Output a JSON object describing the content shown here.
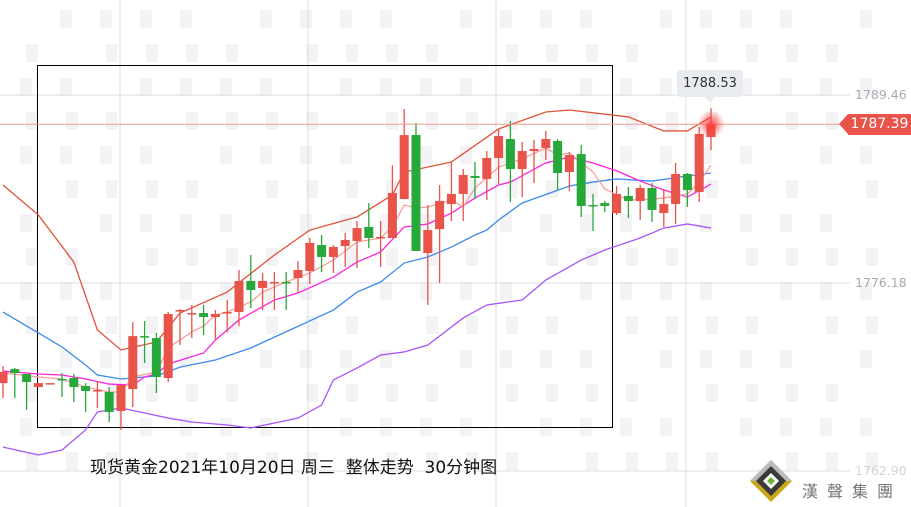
{
  "title": "现货黄金2021年10月20日 周三  整体走势  30分钟图",
  "logo_text": "漢聲集團",
  "colors": {
    "up": "#e8534a",
    "down": "#27a83a",
    "upper_band": "#e0533a",
    "lower_band": "#a855f7",
    "blue_line": "#3b8beb",
    "magenta_line": "#ff22dd",
    "pink_line": "#f4a09a",
    "last_price": "#e8534a"
  },
  "chart_data": {
    "type": "candlestick",
    "title": "现货黄金2021年10月20日 周三  整体走势  30分钟图",
    "ylim": [
      1762.9,
      1789.46
    ],
    "y_ticks": [
      "1789.46",
      "1776.18",
      "1762.90"
    ],
    "grid": true,
    "last_price": "1787.39",
    "tooltip_high": "1788.53",
    "candles": [
      [
        1769.11,
        1770.31,
        1768.06,
        1769.89
      ],
      [
        1770.1,
        1770.17,
        1768.06,
        1769.82
      ],
      [
        1769.75,
        1769.75,
        1767.21,
        1769.18
      ],
      [
        1768.83,
        1769.11,
        1768.83,
        1769.11
      ],
      [
        1769.04,
        1769.11,
        1769.04,
        1769.11
      ],
      [
        1769.4,
        1769.82,
        1768.13,
        1769.33
      ],
      [
        1769.47,
        1769.75,
        1767.77,
        1768.83
      ],
      [
        1768.9,
        1769.11,
        1767.07,
        1768.55
      ],
      [
        1768.55,
        1769.26,
        1767.35,
        1768.62
      ],
      [
        1768.48,
        1768.83,
        1766.37,
        1767.07
      ],
      [
        1767.14,
        1768.97,
        1765.8,
        1768.97
      ],
      [
        1768.69,
        1773.42,
        1767.42,
        1772.43
      ],
      [
        1772.43,
        1773.5,
        1770.53,
        1772.36
      ],
      [
        1772.29,
        1772.65,
        1768.41,
        1769.54
      ],
      [
        1769.47,
        1774.13,
        1769.18,
        1773.99
      ],
      [
        1774.2,
        1774.34,
        1771.8,
        1774.27
      ],
      [
        1773.99,
        1774.63,
        1772.29,
        1774.06
      ],
      [
        1774.06,
        1774.63,
        1772.51,
        1773.78
      ],
      [
        1773.78,
        1774.27,
        1772.15,
        1773.99
      ],
      [
        1774.06,
        1774.98,
        1772.72,
        1774.13
      ],
      [
        1774.13,
        1777.1,
        1773.14,
        1776.32
      ],
      [
        1776.32,
        1778.16,
        1774.41,
        1775.69
      ],
      [
        1775.83,
        1776.89,
        1774.27,
        1776.32
      ],
      [
        1776.18,
        1776.96,
        1774.27,
        1776.25
      ],
      [
        1776.25,
        1776.96,
        1774.27,
        1776.18
      ],
      [
        1776.53,
        1777.73,
        1775.48,
        1777.1
      ],
      [
        1777.03,
        1779.36,
        1776.11,
        1779.01
      ],
      [
        1778.86,
        1779.57,
        1776.96,
        1778.02
      ],
      [
        1778.02,
        1778.86,
        1776.89,
        1778.72
      ],
      [
        1778.79,
        1779.71,
        1777.31,
        1779.22
      ],
      [
        1779.15,
        1780.56,
        1777.24,
        1780.06
      ],
      [
        1780.14,
        1781.83,
        1778.65,
        1779.36
      ],
      [
        1779.36,
        1780.56,
        1777.31,
        1779.43
      ],
      [
        1779.36,
        1784.51,
        1779.36,
        1782.54
      ],
      [
        1782.11,
        1788.47,
        1782.11,
        1786.63
      ],
      [
        1786.63,
        1787.48,
        1778.44,
        1778.44
      ],
      [
        1778.3,
        1781.69,
        1774.63,
        1779.92
      ],
      [
        1779.99,
        1783.1,
        1776.18,
        1781.97
      ],
      [
        1781.76,
        1784.73,
        1780.56,
        1782.47
      ],
      [
        1782.47,
        1784.23,
        1780.56,
        1783.81
      ],
      [
        1783.74,
        1784.73,
        1782.11,
        1783.6
      ],
      [
        1783.53,
        1785.5,
        1782.04,
        1785.01
      ],
      [
        1785.01,
        1786.99,
        1783.17,
        1786.56
      ],
      [
        1786.35,
        1787.62,
        1781.9,
        1784.23
      ],
      [
        1784.23,
        1786.14,
        1782.25,
        1785.5
      ],
      [
        1785.5,
        1786.28,
        1783.24,
        1785.65
      ],
      [
        1785.72,
        1786.92,
        1784.87,
        1786.35
      ],
      [
        1786.21,
        1786.35,
        1782.75,
        1783.95
      ],
      [
        1784.02,
        1785.43,
        1782.68,
        1785.22
      ],
      [
        1785.29,
        1785.93,
        1780.84,
        1781.62
      ],
      [
        1781.69,
        1782.47,
        1779.85,
        1781.62
      ],
      [
        1781.83,
        1781.97,
        1781.19,
        1781.62
      ],
      [
        1781.12,
        1783.03,
        1780.98,
        1782.47
      ],
      [
        1782.33,
        1782.96,
        1780.77,
        1781.97
      ],
      [
        1781.97,
        1783.1,
        1780.63,
        1782.89
      ],
      [
        1782.89,
        1783.24,
        1780.49,
        1781.34
      ],
      [
        1781.12,
        1782.82,
        1780.14,
        1781.76
      ],
      [
        1781.76,
        1784.66,
        1780.35,
        1783.88
      ],
      [
        1783.88,
        1783.95,
        1781.55,
        1782.75
      ],
      [
        1782.61,
        1787.2,
        1781.9,
        1786.71
      ],
      [
        1786.49,
        1788.53,
        1785.57,
        1787.39
      ]
    ],
    "lines": [
      {
        "key": "upper_band",
        "points": [
          [
            0,
            1783.1
          ],
          [
            3,
            1780.98
          ],
          [
            6,
            1777.66
          ],
          [
            8,
            1772.86
          ],
          [
            10,
            1771.45
          ],
          [
            13,
            1772.01
          ],
          [
            15,
            1774.06
          ],
          [
            19,
            1775.54
          ],
          [
            23,
            1778.16
          ],
          [
            26,
            1779.92
          ],
          [
            30,
            1780.84
          ],
          [
            33,
            1782.4
          ],
          [
            34,
            1784.02
          ],
          [
            38,
            1784.73
          ],
          [
            42,
            1787.06
          ],
          [
            46,
            1788.26
          ],
          [
            48,
            1788.4
          ],
          [
            53,
            1787.91
          ],
          [
            56,
            1786.92
          ],
          [
            58,
            1786.92
          ],
          [
            60,
            1787.91
          ]
        ]
      },
      {
        "key": "lower_band",
        "points": [
          [
            0,
            1764.59
          ],
          [
            3,
            1764.03
          ],
          [
            5,
            1764.38
          ],
          [
            7,
            1765.8
          ],
          [
            8,
            1767.07
          ],
          [
            10,
            1767.35
          ],
          [
            12,
            1767.0
          ],
          [
            14,
            1766.64
          ],
          [
            16,
            1766.36
          ],
          [
            19,
            1766.15
          ],
          [
            21,
            1765.94
          ],
          [
            25,
            1766.64
          ],
          [
            27,
            1767.56
          ],
          [
            28,
            1769.33
          ],
          [
            30,
            1770.17
          ],
          [
            32,
            1771.09
          ],
          [
            34,
            1771.31
          ],
          [
            36,
            1771.8
          ],
          [
            39,
            1773.71
          ],
          [
            41,
            1774.63
          ],
          [
            44,
            1774.98
          ],
          [
            46,
            1776.39
          ],
          [
            49,
            1777.8
          ],
          [
            51,
            1778.51
          ],
          [
            54,
            1779.36
          ],
          [
            56,
            1780.06
          ],
          [
            58,
            1780.35
          ],
          [
            60,
            1780.06
          ]
        ]
      },
      {
        "key": "blue_line",
        "points": [
          [
            0,
            1774.13
          ],
          [
            3,
            1772.65
          ],
          [
            5,
            1771.66
          ],
          [
            7,
            1770.39
          ],
          [
            8,
            1769.68
          ],
          [
            10,
            1769.4
          ],
          [
            13,
            1769.61
          ],
          [
            15,
            1770.24
          ],
          [
            18,
            1770.74
          ],
          [
            21,
            1771.59
          ],
          [
            28,
            1774.27
          ],
          [
            30,
            1775.54
          ],
          [
            32,
            1776.25
          ],
          [
            34,
            1777.59
          ],
          [
            36,
            1778.02
          ],
          [
            38,
            1778.72
          ],
          [
            40,
            1779.57
          ],
          [
            41,
            1779.92
          ],
          [
            42,
            1780.63
          ],
          [
            44,
            1781.83
          ],
          [
            48,
            1783.03
          ],
          [
            50,
            1783.31
          ],
          [
            52,
            1783.53
          ],
          [
            55,
            1783.38
          ],
          [
            58,
            1783.74
          ],
          [
            60,
            1783.95
          ]
        ]
      },
      {
        "key": "magenta_line",
        "points": [
          [
            0,
            1769.96
          ],
          [
            3,
            1769.75
          ],
          [
            5,
            1769.68
          ],
          [
            7,
            1769.4
          ],
          [
            9,
            1769.04
          ],
          [
            11,
            1768.97
          ],
          [
            12,
            1769.54
          ],
          [
            13,
            1769.75
          ],
          [
            14,
            1770.46
          ],
          [
            17,
            1771.24
          ],
          [
            18,
            1772.15
          ],
          [
            20,
            1773.57
          ],
          [
            23,
            1774.98
          ],
          [
            25,
            1775.47
          ],
          [
            28,
            1776.6
          ],
          [
            30,
            1777.66
          ],
          [
            32,
            1778.37
          ],
          [
            34,
            1780.14
          ],
          [
            36,
            1780.35
          ],
          [
            38,
            1781.12
          ],
          [
            40,
            1782.18
          ],
          [
            42,
            1783.1
          ],
          [
            43,
            1783.31
          ],
          [
            46,
            1784.66
          ],
          [
            48,
            1785.08
          ],
          [
            50,
            1784.66
          ],
          [
            52,
            1784.1
          ],
          [
            54,
            1783.38
          ],
          [
            56,
            1782.75
          ],
          [
            58,
            1782.25
          ],
          [
            60,
            1783.17
          ]
        ]
      },
      {
        "key": "pink_line",
        "points": [
          [
            0,
            1769.82
          ],
          [
            3,
            1769.54
          ],
          [
            5,
            1769.4
          ],
          [
            7,
            1768.83
          ],
          [
            9,
            1768.48
          ],
          [
            10,
            1768.48
          ],
          [
            11,
            1769.54
          ],
          [
            13,
            1769.89
          ],
          [
            14,
            1771.59
          ],
          [
            16,
            1772.72
          ],
          [
            17,
            1773.14
          ],
          [
            18,
            1773.92
          ],
          [
            19,
            1774.13
          ],
          [
            21,
            1774.84
          ],
          [
            22,
            1775.54
          ],
          [
            24,
            1776.25
          ],
          [
            26,
            1776.89
          ],
          [
            28,
            1777.8
          ],
          [
            30,
            1779.08
          ],
          [
            32,
            1779.36
          ],
          [
            33,
            1780.14
          ],
          [
            34,
            1781.69
          ],
          [
            35,
            1781.48
          ],
          [
            36,
            1781.55
          ],
          [
            38,
            1782.04
          ],
          [
            39,
            1781.55
          ],
          [
            40,
            1782.89
          ],
          [
            42,
            1784.37
          ],
          [
            44,
            1784.94
          ],
          [
            46,
            1785.72
          ],
          [
            47,
            1785.22
          ],
          [
            48,
            1785.36
          ],
          [
            50,
            1784.02
          ],
          [
            51,
            1782.82
          ],
          [
            53,
            1782.04
          ],
          [
            55,
            1782.11
          ],
          [
            56,
            1782.18
          ],
          [
            58,
            1782.47
          ],
          [
            59,
            1783.31
          ],
          [
            60,
            1784.51
          ]
        ]
      }
    ]
  }
}
